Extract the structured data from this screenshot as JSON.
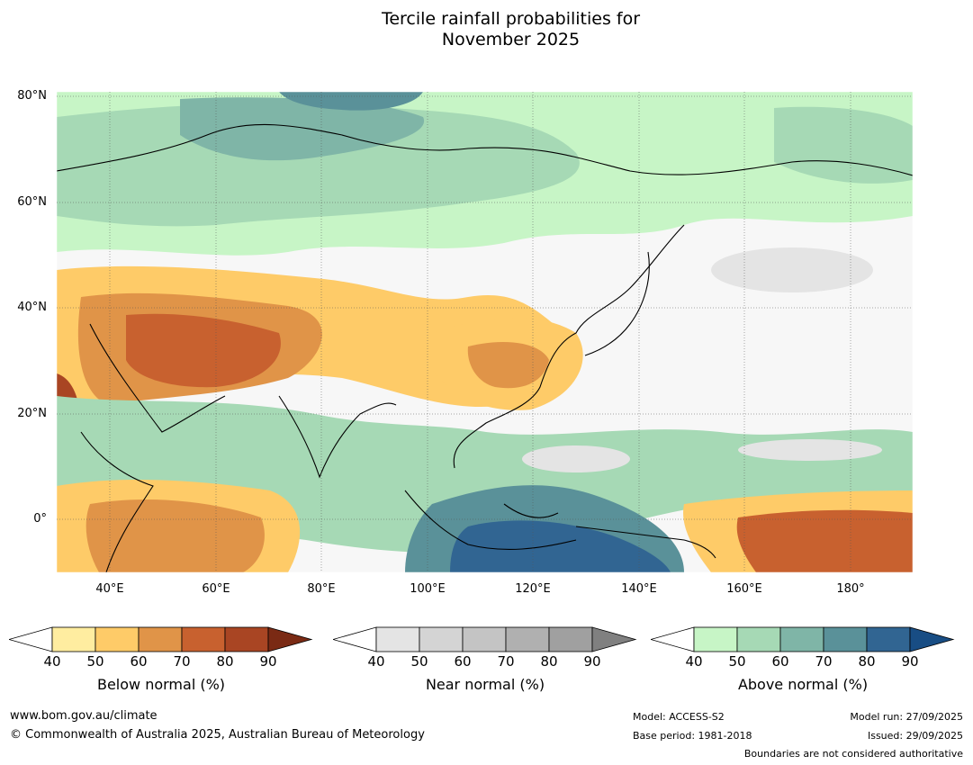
{
  "title": {
    "line1": "Tercile rainfall probabilities for",
    "line2": "November 2025"
  },
  "map": {
    "lat_labels": [
      "80°N",
      "60°N",
      "40°N",
      "20°N",
      "0°"
    ],
    "lon_labels": [
      "40°E",
      "60°E",
      "80°E",
      "100°E",
      "120°E",
      "140°E",
      "160°E",
      "180°"
    ],
    "extent": {
      "lon_min": 30,
      "lon_max": 192,
      "lat_min": -10,
      "lat_max": 81
    },
    "colors": {
      "below": [
        "#ffeda0",
        "#fecb68",
        "#e09448",
        "#c8612f",
        "#a94523",
        "#7a2a14"
      ],
      "near": [
        "#e4e4e4",
        "#d4d4d4",
        "#c4c4c4",
        "#b0b0b0",
        "#a0a0a0",
        "#808080"
      ],
      "above": [
        "#c7f5c6",
        "#a6d9b5",
        "#7fb5a7",
        "#5a9199",
        "#316592",
        "#184d84"
      ]
    }
  },
  "legends": [
    {
      "id": "below",
      "title": "Below normal (%)",
      "ticks": [
        "40",
        "50",
        "60",
        "70",
        "80",
        "90"
      ]
    },
    {
      "id": "near",
      "title": "Near normal (%)",
      "ticks": [
        "40",
        "50",
        "60",
        "70",
        "80",
        "90"
      ]
    },
    {
      "id": "above",
      "title": "Above normal (%)",
      "ticks": [
        "40",
        "50",
        "60",
        "70",
        "80",
        "90"
      ]
    }
  ],
  "footer": {
    "url": "www.bom.gov.au/climate",
    "copyright": "© Commonwealth of Australia 2025, Australian Bureau of Meteorology",
    "model": "Model: ACCESS-S2",
    "base_period": "Base period: 1981-2018",
    "model_run": "Model run: 27/09/2025",
    "issued": "Issued: 29/09/2025",
    "disclaimer": "Boundaries are not considered authoritative"
  }
}
